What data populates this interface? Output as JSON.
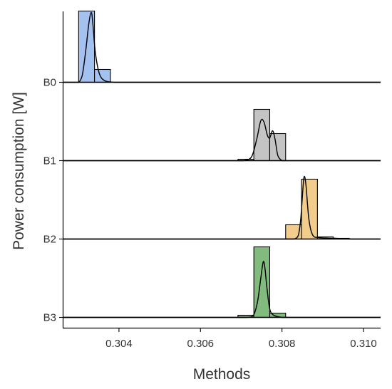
{
  "chart_data": {
    "type": "ridgeline-histogram",
    "title": "",
    "xlabel": "Methods",
    "ylabel": "Power consumption [W]",
    "xlim": [
      0.30262,
      0.31042
    ],
    "xticks": [
      "0.304",
      "0.306",
      "0.308",
      "0.310"
    ],
    "xtick_values": [
      0.304,
      0.306,
      0.308,
      0.31
    ],
    "bin_width": 0.00039,
    "grid": false,
    "legend": "none",
    "series": [
      {
        "name": "B0",
        "color": "#a4c2ef",
        "bins": [
          {
            "start": 0.30301,
            "end": 0.3034,
            "height": 1.0
          },
          {
            "start": 0.3034,
            "end": 0.30379,
            "height": 0.18
          }
        ],
        "density": [
          [
            0.30302,
            0.0
          ],
          [
            0.3031,
            0.1
          ],
          [
            0.30318,
            0.42
          ],
          [
            0.30326,
            0.82
          ],
          [
            0.30332,
            0.98
          ],
          [
            0.30336,
            0.82
          ],
          [
            0.30342,
            0.42
          ],
          [
            0.30352,
            0.12
          ],
          [
            0.30366,
            0.02
          ],
          [
            0.3039,
            0.0
          ]
        ]
      },
      {
        "name": "B1",
        "color": "#c4c4c4",
        "bins": [
          {
            "start": 0.30692,
            "end": 0.30731,
            "height": 0.02
          },
          {
            "start": 0.30731,
            "end": 0.3077,
            "height": 0.72
          },
          {
            "start": 0.3077,
            "end": 0.30809,
            "height": 0.38
          }
        ],
        "density": [
          [
            0.30705,
            0.0
          ],
          [
            0.30725,
            0.05
          ],
          [
            0.30738,
            0.3
          ],
          [
            0.30748,
            0.56
          ],
          [
            0.30756,
            0.54
          ],
          [
            0.30764,
            0.36
          ],
          [
            0.3077,
            0.32
          ],
          [
            0.30777,
            0.42
          ],
          [
            0.30783,
            0.3
          ],
          [
            0.3079,
            0.07
          ],
          [
            0.308,
            0.0
          ]
        ]
      },
      {
        "name": "B2",
        "color": "#f1cc8d",
        "bins": [
          {
            "start": 0.30809,
            "end": 0.30848,
            "height": 0.2
          },
          {
            "start": 0.30848,
            "end": 0.30887,
            "height": 0.84
          },
          {
            "start": 0.30887,
            "end": 0.30926,
            "height": 0.03
          },
          {
            "start": 0.30926,
            "end": 0.30965,
            "height": 0.01
          }
        ],
        "density": [
          [
            0.3083,
            0.0
          ],
          [
            0.3084,
            0.05
          ],
          [
            0.30846,
            0.28
          ],
          [
            0.30852,
            0.75
          ],
          [
            0.30855,
            0.88
          ],
          [
            0.30859,
            0.75
          ],
          [
            0.30866,
            0.28
          ],
          [
            0.30875,
            0.06
          ],
          [
            0.3089,
            0.02
          ],
          [
            0.3093,
            0.01
          ],
          [
            0.3097,
            0.0
          ]
        ]
      },
      {
        "name": "B3",
        "color": "#82bb7e",
        "bins": [
          {
            "start": 0.30692,
            "end": 0.30731,
            "height": 0.03
          },
          {
            "start": 0.30731,
            "end": 0.3077,
            "height": 0.99
          },
          {
            "start": 0.3077,
            "end": 0.30809,
            "height": 0.06
          }
        ],
        "density": [
          [
            0.30715,
            0.0
          ],
          [
            0.3073,
            0.03
          ],
          [
            0.3074,
            0.22
          ],
          [
            0.30748,
            0.55
          ],
          [
            0.30754,
            0.78
          ],
          [
            0.30758,
            0.7
          ],
          [
            0.30763,
            0.42
          ],
          [
            0.3077,
            0.12
          ],
          [
            0.3078,
            0.03
          ],
          [
            0.308,
            0.0
          ]
        ]
      }
    ]
  }
}
